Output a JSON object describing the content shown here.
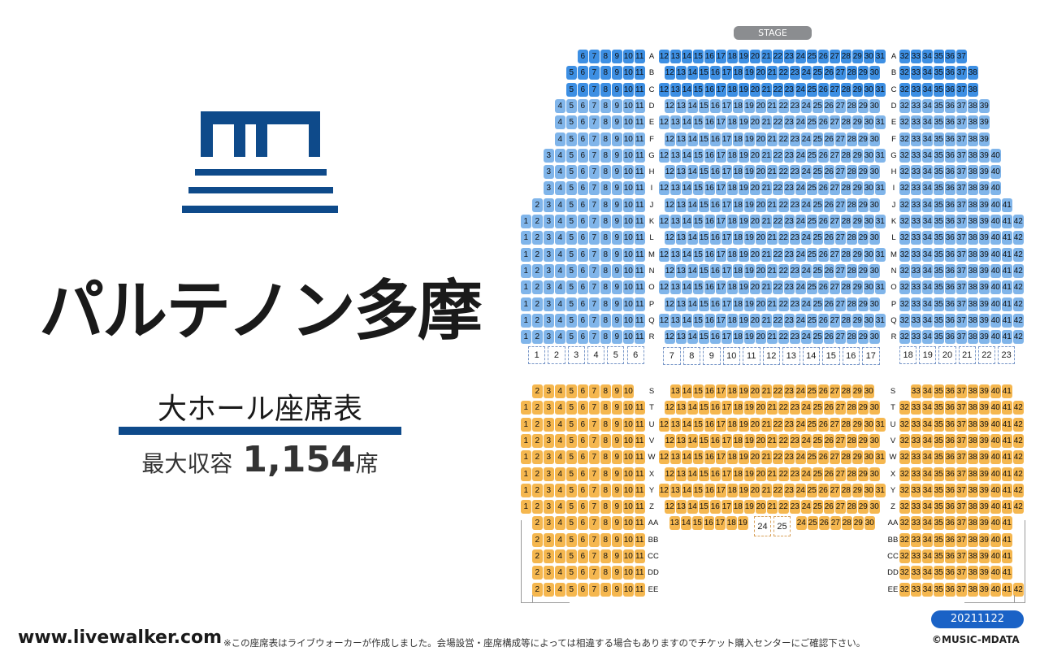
{
  "venue": {
    "name": "パルテノン多摩",
    "subtitle": "大ホール座席表",
    "capacity_label": "最大収容",
    "capacity_value": "1,154",
    "capacity_unit": "席"
  },
  "stage_label": "STAGE",
  "date_badge": "20211122",
  "footer": {
    "url": "www.livewalker.com",
    "note": "※この座席表はライブウォーカーが作成しました。会場設営・座席構成等によっては相違する場合もありますのでチケット購入センターにご確認下さい。",
    "copyright": "©MUSIC-MDATA"
  },
  "colors": {
    "brand": "#0e4a8a",
    "rows_a_c": "#3d8fe3",
    "rows_d_r": "#80b5ea",
    "rows_s_ee": "#f5b74f",
    "badge": "#1a62c6"
  },
  "floor1_rows": [
    {
      "row": "A",
      "left": [
        6,
        11
      ],
      "center": [
        12,
        31
      ],
      "right": [
        32,
        37
      ]
    },
    {
      "row": "B",
      "left": [
        5,
        11
      ],
      "center": [
        12,
        30
      ],
      "right": [
        32,
        38
      ]
    },
    {
      "row": "C",
      "left": [
        5,
        11
      ],
      "center": [
        12,
        31
      ],
      "right": [
        32,
        38
      ]
    },
    {
      "row": "D",
      "left": [
        4,
        11
      ],
      "center": [
        12,
        30
      ],
      "right": [
        32,
        39
      ]
    },
    {
      "row": "E",
      "left": [
        4,
        11
      ],
      "center": [
        12,
        31
      ],
      "right": [
        32,
        39
      ]
    },
    {
      "row": "F",
      "left": [
        4,
        11
      ],
      "center": [
        12,
        30
      ],
      "right": [
        32,
        39
      ]
    },
    {
      "row": "G",
      "left": [
        3,
        11
      ],
      "center": [
        12,
        31
      ],
      "right": [
        32,
        40
      ]
    },
    {
      "row": "H",
      "left": [
        3,
        11
      ],
      "center": [
        12,
        30
      ],
      "right": [
        32,
        40
      ]
    },
    {
      "row": "I",
      "left": [
        3,
        11
      ],
      "center": [
        12,
        31
      ],
      "right": [
        32,
        40
      ]
    },
    {
      "row": "J",
      "left": [
        2,
        11
      ],
      "center": [
        12,
        30
      ],
      "right": [
        32,
        41
      ]
    },
    {
      "row": "K",
      "left": [
        1,
        11
      ],
      "center": [
        12,
        31
      ],
      "right": [
        32,
        42
      ]
    },
    {
      "row": "L",
      "left": [
        1,
        11
      ],
      "center": [
        12,
        30
      ],
      "right": [
        32,
        42
      ]
    },
    {
      "row": "M",
      "left": [
        1,
        11
      ],
      "center": [
        12,
        31
      ],
      "right": [
        32,
        42
      ]
    },
    {
      "row": "N",
      "left": [
        1,
        11
      ],
      "center": [
        12,
        30
      ],
      "right": [
        32,
        42
      ]
    },
    {
      "row": "O",
      "left": [
        1,
        11
      ],
      "center": [
        12,
        31
      ],
      "right": [
        32,
        42
      ]
    },
    {
      "row": "P",
      "left": [
        1,
        11
      ],
      "center": [
        12,
        30
      ],
      "right": [
        32,
        42
      ]
    },
    {
      "row": "Q",
      "left": [
        1,
        11
      ],
      "center": [
        12,
        31
      ],
      "right": [
        32,
        42
      ]
    },
    {
      "row": "R",
      "left": [
        1,
        11
      ],
      "center": [
        12,
        30
      ],
      "right": [
        32,
        42
      ]
    }
  ],
  "boxes_1_6": [
    "1",
    "2",
    "3",
    "4",
    "5",
    "6"
  ],
  "boxes_7_17": [
    "7",
    "8",
    "9",
    "10",
    "11",
    "12",
    "13",
    "14",
    "15",
    "16",
    "17"
  ],
  "boxes_18_23": [
    "18",
    "19",
    "20",
    "21",
    "22",
    "23"
  ],
  "floor2_rows": [
    {
      "row": "S",
      "left": [
        2,
        10
      ],
      "center": [
        13,
        30
      ],
      "right": [
        33,
        41
      ]
    },
    {
      "row": "T",
      "left": [
        1,
        11
      ],
      "center": [
        12,
        30
      ],
      "right": [
        32,
        42
      ]
    },
    {
      "row": "U",
      "left": [
        1,
        11
      ],
      "center": [
        12,
        31
      ],
      "right": [
        32,
        42
      ]
    },
    {
      "row": "V",
      "left": [
        1,
        11
      ],
      "center": [
        12,
        30
      ],
      "right": [
        32,
        42
      ]
    },
    {
      "row": "W",
      "left": [
        1,
        11
      ],
      "center": [
        12,
        31
      ],
      "right": [
        32,
        42
      ]
    },
    {
      "row": "X",
      "left": [
        1,
        11
      ],
      "center": [
        12,
        30
      ],
      "right": [
        32,
        42
      ]
    },
    {
      "row": "Y",
      "left": [
        1,
        11
      ],
      "center": [
        12,
        31
      ],
      "right": [
        32,
        42
      ]
    },
    {
      "row": "Z",
      "left": [
        1,
        11
      ],
      "center": [
        12,
        30
      ],
      "right": [
        32,
        42
      ]
    },
    {
      "row": "AA",
      "left": [
        2,
        11
      ],
      "center": [
        13,
        19
      ],
      "right": [
        32,
        41
      ]
    },
    {
      "row": "BB",
      "left": [
        2,
        11
      ],
      "center": null,
      "right": [
        32,
        41
      ]
    },
    {
      "row": "CC",
      "left": [
        2,
        11
      ],
      "center": null,
      "right": [
        32,
        41
      ]
    },
    {
      "row": "DD",
      "left": [
        2,
        11
      ],
      "center": null,
      "right": [
        32,
        41
      ]
    },
    {
      "row": "EE",
      "left": [
        2,
        11
      ],
      "center": null,
      "right": [
        32,
        42
      ]
    }
  ],
  "aa_right_center": [
    24,
    30
  ],
  "aa_boxes": [
    "24",
    "25"
  ]
}
